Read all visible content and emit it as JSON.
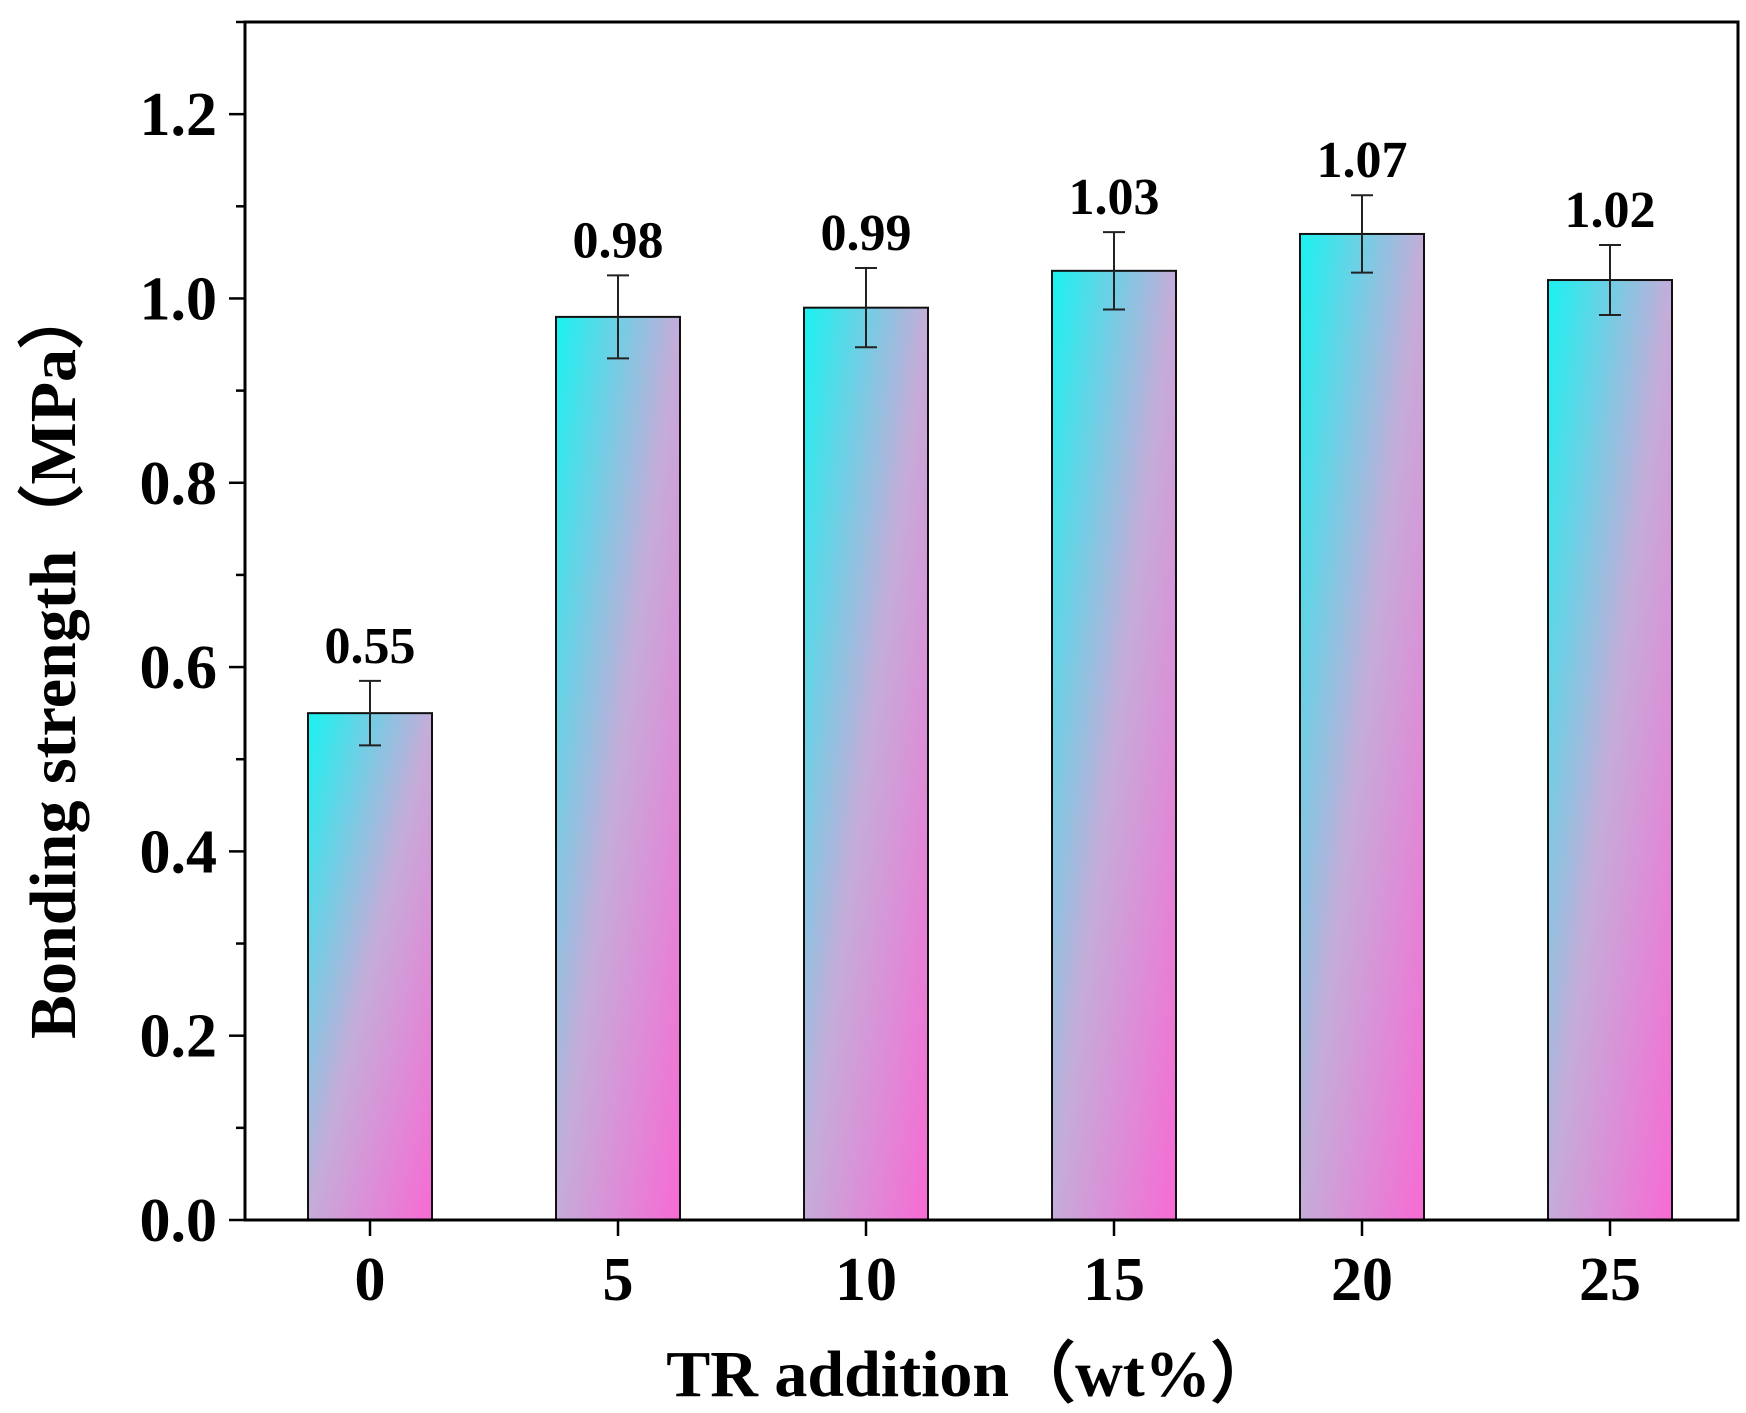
{
  "chart_data": {
    "type": "bar",
    "title": "",
    "xlabel": "TR addition（wt%）",
    "ylabel": "Bonding strength（MPa）",
    "categories": [
      "0",
      "5",
      "10",
      "15",
      "20",
      "25"
    ],
    "values": [
      0.55,
      0.98,
      0.99,
      1.03,
      1.07,
      1.02
    ],
    "error": [
      0.035,
      0.045,
      0.043,
      0.042,
      0.042,
      0.038
    ],
    "value_labels": [
      "0.55",
      "0.98",
      "0.99",
      "1.03",
      "1.07",
      "1.02"
    ],
    "ylim": [
      0,
      1.3
    ],
    "yticks": [
      0.0,
      0.2,
      0.4,
      0.6,
      0.8,
      1.0,
      1.2
    ],
    "ytick_labels": [
      "0.0",
      "0.2",
      "0.4",
      "0.6",
      "0.8",
      "1.0",
      "1.2"
    ],
    "grid": false,
    "legend": "none",
    "colors": {
      "gradient_top_left": "#19f2f0",
      "gradient_middle": "#c5acd9",
      "gradient_bottom_right": "#f76ad4",
      "bar_stroke": "#111111",
      "axis": "#000000"
    }
  }
}
